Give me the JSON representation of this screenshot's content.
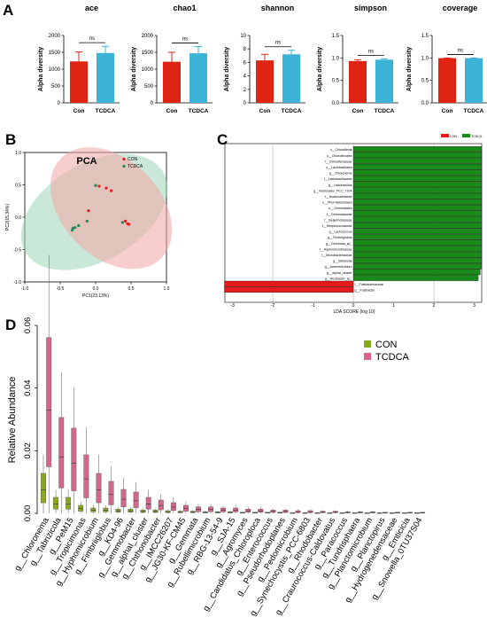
{
  "panel_labels": {
    "a": "A",
    "b": "B",
    "c": "C",
    "d": "D"
  },
  "colors": {
    "con_bar": "#e02414",
    "tcdca_bar": "#3bb3d6",
    "con_pca": "#f2a4a4",
    "tcdca_pca": "#9fd6b8",
    "lda_con": "#e41a1c",
    "lda_tcdca": "#1a8a1a",
    "box_con": "#8aa81e",
    "box_tcdca": "#d9648e"
  },
  "chart_data": [
    {
      "type": "bar",
      "panel": "A",
      "ylabel": "Alpha diversity",
      "categories": [
        "Con",
        "TCDCA"
      ],
      "charts": [
        {
          "title": "ace",
          "values": [
            1230,
            1480
          ],
          "errors": [
            280,
            200
          ],
          "ylim": [
            0,
            2000
          ],
          "yticks": [
            "0",
            "500",
            "1000",
            "1500",
            "2000"
          ],
          "sig": "ns"
        },
        {
          "title": "chao1",
          "values": [
            1220,
            1470
          ],
          "errors": [
            280,
            200
          ],
          "ylim": [
            0,
            2000
          ],
          "yticks": [
            "0",
            "500",
            "1000",
            "1500",
            "2000"
          ],
          "sig": "ns"
        },
        {
          "title": "shannon",
          "values": [
            6.3,
            7.2
          ],
          "errors": [
            0.9,
            0.6
          ],
          "ylim": [
            0,
            10
          ],
          "yticks": [
            "0",
            "2",
            "4",
            "6",
            "8",
            "10"
          ],
          "sig": "ns"
        },
        {
          "title": "simpson",
          "values": [
            0.93,
            0.96
          ],
          "errors": [
            0.03,
            0.02
          ],
          "ylim": [
            0,
            1.5
          ],
          "yticks": [
            "0.0",
            "0.5",
            "1.0",
            "1.5"
          ],
          "sig": "ns"
        },
        {
          "title": "coverage",
          "values": [
            0.995,
            0.995
          ],
          "errors": [
            0.003,
            0.003
          ],
          "ylim": [
            0,
            1.5
          ],
          "yticks": [
            "0.0",
            "0.5",
            "1.0",
            "1.5"
          ],
          "sig": "ns"
        }
      ]
    },
    {
      "type": "scatter",
      "panel": "B",
      "title": "PCA",
      "xlabel": "PC1(23.13%)",
      "ylabel": "PC2(15.34%)",
      "xlim": [
        -1.0,
        1.0
      ],
      "ylim": [
        -1.0,
        1.0
      ],
      "xticks": [
        "-1.0",
        "-0.5",
        "0.0",
        "0.5",
        "1.0"
      ],
      "yticks": [
        "-1.0",
        "-0.5",
        "0.0",
        "0.5",
        "1.0"
      ],
      "series": [
        {
          "name": "CON",
          "points": [
            [
              0.05,
              0.48
            ],
            [
              0.15,
              0.45
            ],
            [
              0.22,
              0.41
            ],
            [
              -0.1,
              0.1
            ],
            [
              0.42,
              -0.06
            ],
            [
              0.45,
              -0.1
            ],
            [
              0.47,
              -0.11
            ]
          ]
        },
        {
          "name": "TCDCA",
          "points": [
            [
              0.0,
              0.49
            ],
            [
              -0.12,
              -0.06
            ],
            [
              -0.24,
              -0.13
            ],
            [
              -0.29,
              -0.16
            ],
            [
              -0.32,
              -0.17
            ],
            [
              -0.33,
              -0.2
            ],
            [
              0.38,
              -0.08
            ]
          ]
        }
      ]
    },
    {
      "type": "bar",
      "panel": "C",
      "orientation": "horizontal",
      "xlabel": "LDA SCORE (log 10)",
      "xlim": [
        -3.2,
        4.5
      ],
      "xticks": [
        "-3",
        "-2",
        "-1",
        "0",
        "1",
        "2",
        "3",
        "4"
      ],
      "legend": [
        "CON",
        "TCDCA"
      ],
      "bars": [
        {
          "label": "c__Chloroflexia",
          "value": 4.5,
          "group": "TCDCA"
        },
        {
          "label": "o__Chloroflexales",
          "value": 4.5,
          "group": "TCDCA"
        },
        {
          "label": "f__Chloroflexaceae",
          "value": 4.35,
          "group": "TCDCA"
        },
        {
          "label": "o__Lactobacillales",
          "value": 4.2,
          "group": "TCDCA"
        },
        {
          "label": "g__Chloronema",
          "value": 4.05,
          "group": "TCDCA"
        },
        {
          "label": "f__Lactobacillaceae",
          "value": 3.95,
          "group": "TCDCA"
        },
        {
          "label": "g__Lactobacillus",
          "value": 3.9,
          "group": "TCDCA"
        },
        {
          "label": "g__Nostocales_PCC_7104",
          "value": 3.7,
          "group": "TCDCA"
        },
        {
          "label": "f__Nostocaleaceae",
          "value": 3.7,
          "group": "TCDCA"
        },
        {
          "label": "o__Phormidesmiales",
          "value": 3.65,
          "group": "TCDCA"
        },
        {
          "label": "o__Gemmatales",
          "value": 3.65,
          "group": "TCDCA"
        },
        {
          "label": "f__Gemmataceae",
          "value": 3.65,
          "group": "TCDCA"
        },
        {
          "label": "f__Beijerinckiaceae",
          "value": 3.6,
          "group": "TCDCA"
        },
        {
          "label": "f__Streptococcaceae",
          "value": 3.55,
          "group": "TCDCA"
        },
        {
          "label": "g__Lactococcus",
          "value": 3.5,
          "group": "TCDCA"
        },
        {
          "label": "g__Fimbriiglobus",
          "value": 3.5,
          "group": "TCDCA"
        },
        {
          "label": "g__Gemmata_sp_",
          "value": 3.45,
          "group": "TCDCA"
        },
        {
          "label": "f__Hyphomicrobiaceae",
          "value": 3.4,
          "group": "TCDCA"
        },
        {
          "label": "f__Microbacteriaceae",
          "value": 3.35,
          "group": "TCDCA"
        },
        {
          "label": "g__Weissella",
          "value": 3.3,
          "group": "TCDCA"
        },
        {
          "label": "g__Aureimicrobium",
          "value": 3.2,
          "group": "TCDCA"
        },
        {
          "label": "g__alphaI_cluster",
          "value": 3.15,
          "group": "TCDCA"
        },
        {
          "label": "g__Alcobacter_sp_",
          "value": 3.1,
          "group": "TCDCA"
        },
        {
          "label": "f__Fusibacteriaceae",
          "value": -3.2,
          "group": "CON"
        },
        {
          "label": "g__Fusibacter",
          "value": -3.2,
          "group": "CON"
        }
      ]
    },
    {
      "type": "box",
      "panel": "D",
      "ylabel": "Relative Abundance",
      "ylim": [
        0,
        0.06
      ],
      "yticks": [
        "0.00",
        "0.02",
        "0.04",
        "0.06"
      ],
      "legend": [
        "CON",
        "TCDCA"
      ],
      "categories": [
        "g__Chloronema",
        "g__Tabrizicola",
        "g__PeM15",
        "g__Tropicimonas",
        "g__Hyphomicrobium",
        "g__Fimbriiglobus",
        "g__KD4-96",
        "g__Gemmobacter",
        "g__alphaI_cluster",
        "g__Chthonobacter",
        "g__IMCC26207",
        "g__JG30-KF-CM45",
        "g__Gemmata",
        "g__Rubellimicrobium",
        "g__RBG-13-54-9",
        "g__SJA-15",
        "g__Agromyces",
        "g__Candidatus_Chloroploca",
        "g__Enterococcus",
        "g__Pseudorhodoplanes",
        "g__Pedomicrobium",
        "g__Synechocystis_PCC-6803",
        "g__Rhodobacter",
        "g__Craurococcus-Caldovatus",
        "g__Paracoccus",
        "g__Tundrisphaera",
        "g__Planctomicrobium",
        "g__Planctopirus",
        "g__Hydrogenedensaceae",
        "g__Emticicia",
        "g__Snowella_0TU37S04"
      ],
      "con_median": [
        0.0075,
        0.003,
        0.003,
        0.0015,
        0.001,
        0.001,
        0.0008,
        0.0008,
        0.0006,
        0.0006,
        0.0005,
        0.0004,
        0.0004,
        0.0003,
        0.0003,
        0.0003,
        0.0002,
        0.0002,
        0.0002,
        0.0002,
        0.0001,
        0.0001,
        0.0001,
        0.0001,
        0.0001,
        0.0001,
        0.0001,
        0.0001,
        0.0001,
        0.0001,
        0.0001
      ],
      "tcdca_median": [
        0.033,
        0.018,
        0.016,
        0.011,
        0.0075,
        0.006,
        0.0045,
        0.004,
        0.003,
        0.0025,
        0.002,
        0.0015,
        0.0012,
        0.0012,
        0.001,
        0.001,
        0.0008,
        0.0008,
        0.0006,
        0.0006,
        0.0005,
        0.0005,
        0.0004,
        0.0004,
        0.0003,
        0.0003,
        0.0003,
        0.0002,
        0.0002,
        0.0002,
        0.0002
      ]
    }
  ]
}
